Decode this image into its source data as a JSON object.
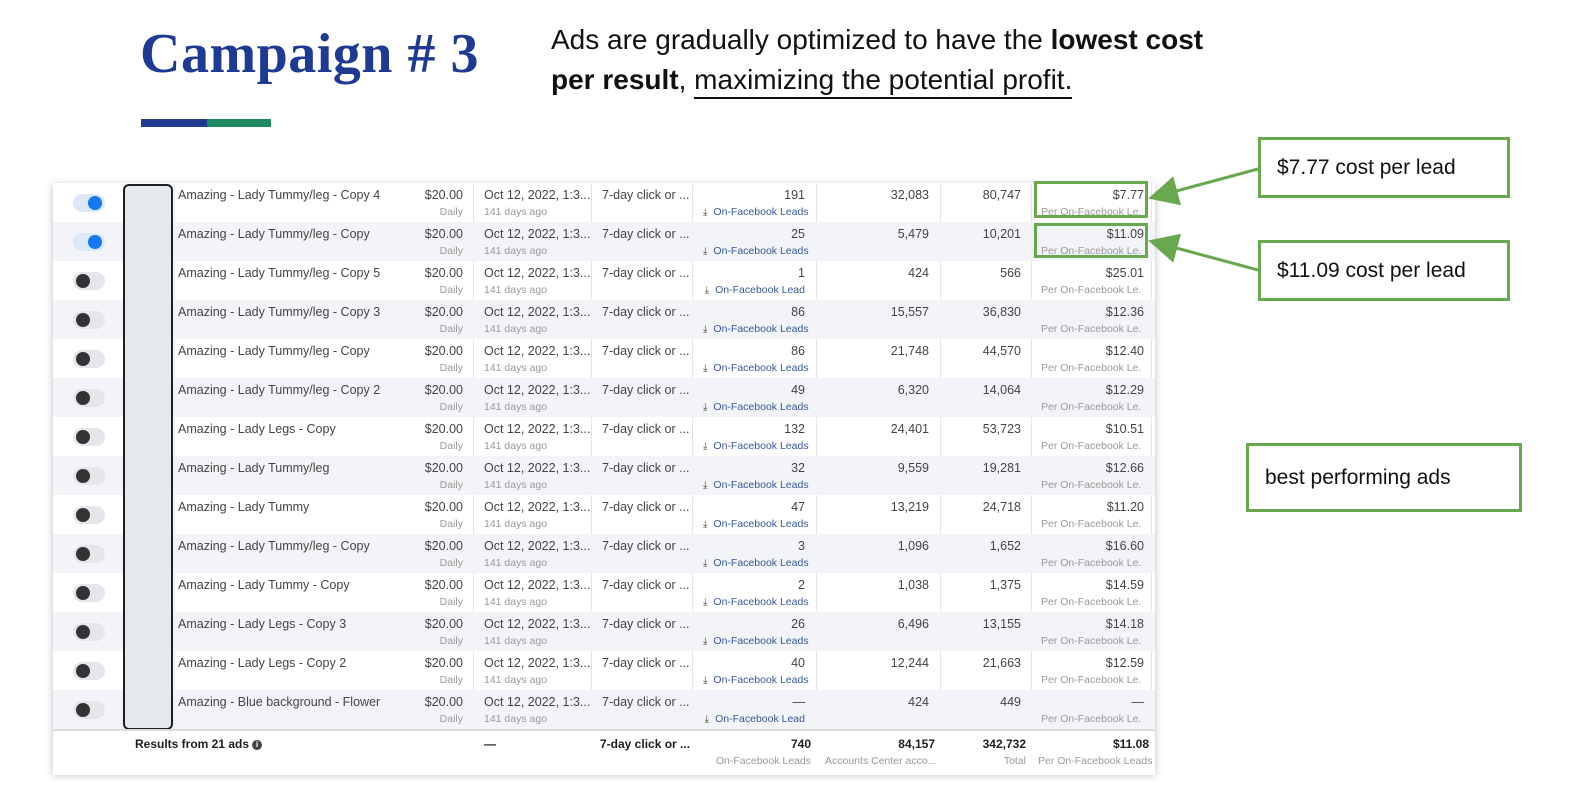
{
  "header": {
    "title": "Campaign # 3",
    "subtitle_part1": "Ads are gradually optimized to have the ",
    "subtitle_bold1": "lowest cost",
    "subtitle_bold2": "per result",
    "subtitle_comma": ",",
    "subtitle_underlined": "maximizing the potential profit."
  },
  "callouts": {
    "first": "$7.77 cost per lead",
    "second": "$11.09 cost per lead",
    "best": "best performing ads"
  },
  "colors": {
    "title": "#1f3a93",
    "accent_green": "#6aa84f",
    "toggle_on": "#1877f2"
  },
  "rows": [
    {
      "on": true,
      "name": "Amazing - Lady Tummy/leg - Copy 4",
      "budget": "$20.00",
      "budget_sub": "Daily",
      "date": "Oct 12, 2022, 1:3...",
      "date_sub": "141 days ago",
      "attr": "7-day click or ...",
      "results": "191",
      "results_sub": "On-Facebook Leads",
      "reach": "32,083",
      "impressions": "80,747",
      "cpr": "$7.77",
      "cpr_sub": "Per On-Facebook Le..."
    },
    {
      "on": true,
      "name": "Amazing - Lady Tummy/leg - Copy",
      "budget": "$20.00",
      "budget_sub": "Daily",
      "date": "Oct 12, 2022, 1:3...",
      "date_sub": "141 days ago",
      "attr": "7-day click or ...",
      "results": "25",
      "results_sub": "On-Facebook Leads",
      "reach": "5,479",
      "impressions": "10,201",
      "cpr": "$11.09",
      "cpr_sub": "Per On-Facebook Le..."
    },
    {
      "on": false,
      "name": "Amazing - Lady Tummy/leg - Copy 5",
      "budget": "$20.00",
      "budget_sub": "Daily",
      "date": "Oct 12, 2022, 1:3...",
      "date_sub": "141 days ago",
      "attr": "7-day click or ...",
      "results": "1",
      "results_sub": "On-Facebook Lead",
      "reach": "424",
      "impressions": "566",
      "cpr": "$25.01",
      "cpr_sub": "Per On-Facebook Le..."
    },
    {
      "on": false,
      "name": "Amazing - Lady Tummy/leg - Copy 3",
      "budget": "$20.00",
      "budget_sub": "Daily",
      "date": "Oct 12, 2022, 1:3...",
      "date_sub": "141 days ago",
      "attr": "7-day click or ...",
      "results": "86",
      "results_sub": "On-Facebook Leads",
      "reach": "15,557",
      "impressions": "36,830",
      "cpr": "$12.36",
      "cpr_sub": "Per On-Facebook Le..."
    },
    {
      "on": false,
      "name": "Amazing - Lady Tummy/leg - Copy",
      "budget": "$20.00",
      "budget_sub": "Daily",
      "date": "Oct 12, 2022, 1:3...",
      "date_sub": "141 days ago",
      "attr": "7-day click or ...",
      "results": "86",
      "results_sub": "On-Facebook Leads",
      "reach": "21,748",
      "impressions": "44,570",
      "cpr": "$12.40",
      "cpr_sub": "Per On-Facebook Le..."
    },
    {
      "on": false,
      "name": "Amazing - Lady Tummy/leg - Copy 2",
      "budget": "$20.00",
      "budget_sub": "Daily",
      "date": "Oct 12, 2022, 1:3...",
      "date_sub": "141 days ago",
      "attr": "7-day click or ...",
      "results": "49",
      "results_sub": "On-Facebook Leads",
      "reach": "6,320",
      "impressions": "14,064",
      "cpr": "$12.29",
      "cpr_sub": "Per On-Facebook Le..."
    },
    {
      "on": false,
      "name": "Amazing - Lady Legs - Copy",
      "budget": "$20.00",
      "budget_sub": "Daily",
      "date": "Oct 12, 2022, 1:3...",
      "date_sub": "141 days ago",
      "attr": "7-day click or ...",
      "results": "132",
      "results_sub": "On-Facebook Leads",
      "reach": "24,401",
      "impressions": "53,723",
      "cpr": "$10.51",
      "cpr_sub": "Per On-Facebook Le..."
    },
    {
      "on": false,
      "name": "Amazing - Lady Tummy/leg",
      "budget": "$20.00",
      "budget_sub": "Daily",
      "date": "Oct 12, 2022, 1:3...",
      "date_sub": "141 days ago",
      "attr": "7-day click or ...",
      "results": "32",
      "results_sub": "On-Facebook Leads",
      "reach": "9,559",
      "impressions": "19,281",
      "cpr": "$12.66",
      "cpr_sub": "Per On-Facebook Le..."
    },
    {
      "on": false,
      "name": "Amazing - Lady Tummy",
      "budget": "$20.00",
      "budget_sub": "Daily",
      "date": "Oct 12, 2022, 1:3...",
      "date_sub": "141 days ago",
      "attr": "7-day click or ...",
      "results": "47",
      "results_sub": "On-Facebook Leads",
      "reach": "13,219",
      "impressions": "24,718",
      "cpr": "$11.20",
      "cpr_sub": "Per On-Facebook Le..."
    },
    {
      "on": false,
      "name": "Amazing - Lady Tummy/leg - Copy",
      "budget": "$20.00",
      "budget_sub": "Daily",
      "date": "Oct 12, 2022, 1:3...",
      "date_sub": "141 days ago",
      "attr": "7-day click or ...",
      "results": "3",
      "results_sub": "On-Facebook Leads",
      "reach": "1,096",
      "impressions": "1,652",
      "cpr": "$16.60",
      "cpr_sub": "Per On-Facebook Le..."
    },
    {
      "on": false,
      "name": "Amazing - Lady Tummy - Copy",
      "budget": "$20.00",
      "budget_sub": "Daily",
      "date": "Oct 12, 2022, 1:3...",
      "date_sub": "141 days ago",
      "attr": "7-day click or ...",
      "results": "2",
      "results_sub": "On-Facebook Leads",
      "reach": "1,038",
      "impressions": "1,375",
      "cpr": "$14.59",
      "cpr_sub": "Per On-Facebook Le..."
    },
    {
      "on": false,
      "name": "Amazing - Lady Legs - Copy 3",
      "budget": "$20.00",
      "budget_sub": "Daily",
      "date": "Oct 12, 2022, 1:3...",
      "date_sub": "141 days ago",
      "attr": "7-day click or ...",
      "results": "26",
      "results_sub": "On-Facebook Leads",
      "reach": "6,496",
      "impressions": "13,155",
      "cpr": "$14.18",
      "cpr_sub": "Per On-Facebook Le..."
    },
    {
      "on": false,
      "name": "Amazing - Lady Legs - Copy 2",
      "budget": "$20.00",
      "budget_sub": "Daily",
      "date": "Oct 12, 2022, 1:3...",
      "date_sub": "141 days ago",
      "attr": "7-day click or ...",
      "results": "40",
      "results_sub": "On-Facebook Leads",
      "reach": "12,244",
      "impressions": "21,663",
      "cpr": "$12.59",
      "cpr_sub": "Per On-Facebook Le..."
    },
    {
      "on": false,
      "name": "Amazing - Blue background - Flower",
      "budget": "$20.00",
      "budget_sub": "Daily",
      "date": "Oct 12, 2022, 1:3...",
      "date_sub": "141 days ago",
      "attr": "7-day click or ...",
      "results": "—",
      "results_sub": "On-Facebook Lead",
      "reach": "424",
      "impressions": "449",
      "cpr": "—",
      "cpr_sub": "Per On-Facebook Le..."
    }
  ],
  "footer": {
    "label": "Results from 21 ads",
    "info_icon": "info-icon",
    "date": "—",
    "attr": "7-day click or ...",
    "results": "740",
    "results_sub": "On-Facebook Leads",
    "reach": "84,157",
    "reach_sub": "Accounts Center acco...",
    "impressions": "342,732",
    "impressions_sub": "Total",
    "cpr": "$11.08",
    "cpr_sub": "Per On-Facebook Leads"
  }
}
